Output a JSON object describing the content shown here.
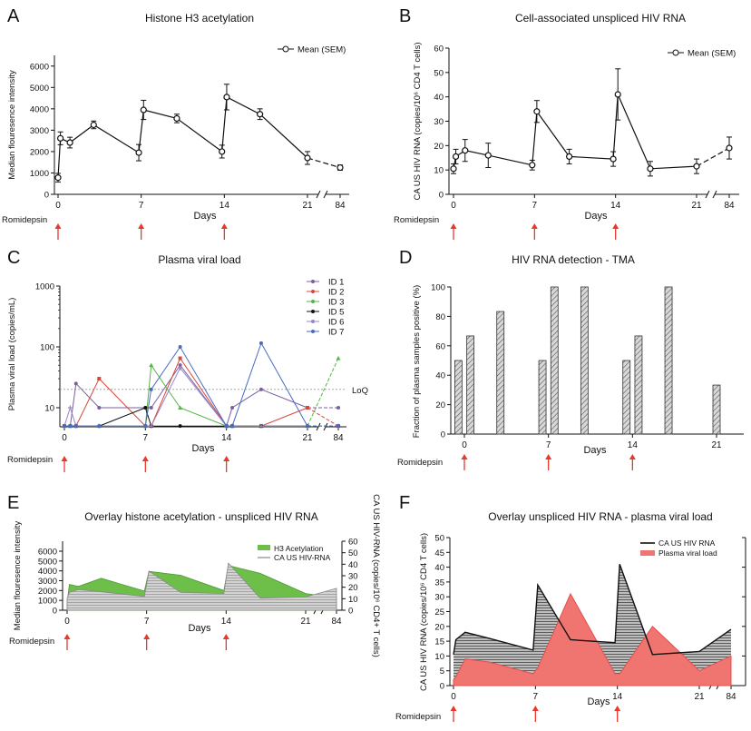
{
  "romidepsin_label": "Romidepsin",
  "arrow_color": "#e8382c",
  "chart_data": [
    {
      "panel": "A",
      "type": "line",
      "title": "Histone H3 acetylation",
      "xlabel": "Days",
      "ylabel": "Median flouresence intensity",
      "ylim": [
        0,
        6500
      ],
      "yticks": [
        0,
        1000,
        2000,
        3000,
        4000,
        5000,
        6000
      ],
      "xticks": [
        "0",
        "7",
        "14",
        "21",
        "84"
      ],
      "legend": "Mean (SEM)",
      "legend_position": "top-right",
      "romidepsin_days": [
        0,
        7,
        14
      ],
      "series": [
        {
          "name": "Mean (SEM)",
          "points": [
            {
              "x": 0,
              "y": 780,
              "err": 200
            },
            {
              "x": 0.2,
              "y": 2620,
              "err": 300
            },
            {
              "x": 1,
              "y": 2420,
              "err": 250
            },
            {
              "x": 3,
              "y": 3250,
              "err": 180
            },
            {
              "x": 6.8,
              "y": 1950,
              "err": 380
            },
            {
              "x": 7.2,
              "y": 3950,
              "err": 450
            },
            {
              "x": 10,
              "y": 3550,
              "err": 200
            },
            {
              "x": 13.8,
              "y": 2000,
              "err": 300
            },
            {
              "x": 14.2,
              "y": 4550,
              "err": 600
            },
            {
              "x": 17,
              "y": 3750,
              "err": 250
            },
            {
              "x": 21,
              "y": 1700,
              "err": 300
            },
            {
              "x": 84,
              "y": 1250,
              "err": 120
            }
          ]
        }
      ]
    },
    {
      "panel": "B",
      "type": "line",
      "title": "Cell-associated unspliced HIV RNA",
      "xlabel": "Days",
      "ylabel": "CA US HIV RNA (copies/10⁶ CD4 T cells)",
      "ylim": [
        0,
        60
      ],
      "yticks": [
        0,
        10,
        20,
        30,
        40,
        50,
        60
      ],
      "xticks": [
        "0",
        "7",
        "14",
        "21",
        "84"
      ],
      "legend": "Mean (SEM)",
      "legend_position": "top-right",
      "romidepsin_days": [
        0,
        7,
        14
      ],
      "series": [
        {
          "name": "Mean (SEM)",
          "points": [
            {
              "x": 0,
              "y": 10.5,
              "err": 2
            },
            {
              "x": 0.2,
              "y": 15.5,
              "err": 3
            },
            {
              "x": 1,
              "y": 18,
              "err": 4.5
            },
            {
              "x": 3,
              "y": 16,
              "err": 5
            },
            {
              "x": 6.8,
              "y": 12,
              "err": 2
            },
            {
              "x": 7.2,
              "y": 34,
              "err": 4.5
            },
            {
              "x": 10,
              "y": 15.5,
              "err": 3
            },
            {
              "x": 13.8,
              "y": 14.5,
              "err": 3
            },
            {
              "x": 14.2,
              "y": 41,
              "err": 10.5
            },
            {
              "x": 17,
              "y": 10.5,
              "err": 3
            },
            {
              "x": 21,
              "y": 11.5,
              "err": 3
            },
            {
              "x": 84,
              "y": 19,
              "err": 4.5
            }
          ]
        }
      ]
    },
    {
      "panel": "C",
      "type": "line",
      "title": "Plasma viral load",
      "xlabel": "Days",
      "ylabel": "Plasma viral load (copies/mL)",
      "yscale": "log",
      "ylim": [
        4,
        1000
      ],
      "yticks": [
        10,
        100,
        1000
      ],
      "xticks": [
        "0",
        "7",
        "14",
        "21",
        "84"
      ],
      "loq_label": "LoQ",
      "loq_value": 20,
      "legend_position": "top-right",
      "romidepsin_days": [
        0,
        7,
        14
      ],
      "series": [
        {
          "name": "ID 1",
          "color": "#7a5fa0",
          "marker": "circle",
          "points": [
            [
              0,
              5
            ],
            [
              0.5,
              5
            ],
            [
              1,
              25
            ],
            [
              3,
              10
            ],
            [
              7,
              10
            ],
            [
              7.5,
              10
            ],
            [
              10,
              50
            ],
            [
              14,
              5
            ],
            [
              14.5,
              10
            ],
            [
              17,
              20
            ],
            [
              21,
              10
            ],
            [
              84,
              10
            ]
          ]
        },
        {
          "name": "ID 2",
          "color": "#d9473a",
          "marker": "square",
          "points": [
            [
              0,
              5
            ],
            [
              0.5,
              5
            ],
            [
              1,
              5
            ],
            [
              3,
              30
            ],
            [
              7,
              5
            ],
            [
              7.5,
              5
            ],
            [
              10,
              65
            ],
            [
              14,
              5
            ],
            [
              14.5,
              5
            ],
            [
              17,
              5
            ],
            [
              21,
              10
            ],
            [
              84,
              5
            ]
          ]
        },
        {
          "name": "ID 3",
          "color": "#56b34a",
          "marker": "triangle",
          "points": [
            [
              0,
              5
            ],
            [
              0.5,
              5
            ],
            [
              1,
              5
            ],
            [
              3,
              5
            ],
            [
              7,
              5
            ],
            [
              7.5,
              50
            ],
            [
              10,
              10
            ],
            [
              14,
              5
            ],
            [
              14.5,
              5
            ],
            [
              17,
              5
            ],
            [
              21,
              5
            ],
            [
              84,
              65
            ]
          ]
        },
        {
          "name": "ID 5",
          "color": "#111111",
          "marker": "circle",
          "points": [
            [
              0,
              5
            ],
            [
              0.5,
              5
            ],
            [
              1,
              5
            ],
            [
              3,
              5
            ],
            [
              7,
              10
            ],
            [
              7.5,
              5
            ],
            [
              10,
              5
            ],
            [
              14,
              5
            ],
            [
              14.5,
              5
            ],
            [
              17,
              5
            ],
            [
              21,
              5
            ],
            [
              84,
              5
            ]
          ]
        },
        {
          "name": "ID 6",
          "color": "#9a86c9",
          "marker": "star",
          "points": [
            [
              0,
              5
            ],
            [
              0.5,
              10
            ],
            [
              1,
              5
            ],
            [
              3,
              5
            ],
            [
              7,
              5
            ],
            [
              7.5,
              5
            ],
            [
              10,
              45
            ],
            [
              14,
              5
            ],
            [
              14.5,
              5
            ],
            [
              17,
              5
            ],
            [
              21,
              5
            ],
            [
              84,
              5
            ]
          ]
        },
        {
          "name": "ID 7",
          "color": "#4a6ac2",
          "marker": "circle",
          "points": [
            [
              0,
              5
            ],
            [
              0.5,
              5
            ],
            [
              1,
              5
            ],
            [
              3,
              5
            ],
            [
              7,
              5
            ],
            [
              7.5,
              20
            ],
            [
              10,
              100
            ],
            [
              14,
              5
            ],
            [
              14.5,
              5
            ],
            [
              17,
              115
            ],
            [
              21,
              5
            ],
            [
              84,
              5
            ]
          ]
        }
      ]
    },
    {
      "panel": "D",
      "type": "bar",
      "title": "HIV RNA detection - TMA",
      "xlabel": "Days",
      "ylabel": "Fraction of plasma samples positive (%)",
      "ylim": [
        0,
        100
      ],
      "yticks": [
        0,
        20,
        40,
        60,
        80,
        100
      ],
      "xticks": [
        "0",
        "7",
        "14",
        "21"
      ],
      "romidepsin_days": [
        0,
        7,
        14
      ],
      "bars": [
        {
          "x": -0.5,
          "value": 50
        },
        {
          "x": 0.5,
          "value": 66.7
        },
        {
          "x": 3,
          "value": 83.3
        },
        {
          "x": 6.5,
          "value": 50
        },
        {
          "x": 7.5,
          "value": 100
        },
        {
          "x": 10,
          "value": 100
        },
        {
          "x": 13.5,
          "value": 50
        },
        {
          "x": 14.5,
          "value": 66.7
        },
        {
          "x": 17,
          "value": 100
        },
        {
          "x": 21,
          "value": 33.3
        }
      ]
    },
    {
      "panel": "E",
      "type": "area",
      "title": "Overlay histone acetylation - unspliced HIV RNA",
      "xlabel": "Days",
      "ylabel": "Median flouresence intensity",
      "ylabel_right": "CA US HIV-RNA (copies/10⁶ CD4+ T cells)",
      "ylim": [
        0,
        6500
      ],
      "ylim_right": [
        0,
        60
      ],
      "yticks": [
        0,
        1000,
        2000,
        3000,
        4000,
        5000,
        6000
      ],
      "yticks_right": [
        0,
        10,
        20,
        30,
        40,
        50,
        60
      ],
      "xticks": [
        "0",
        "7",
        "14",
        "21",
        "84"
      ],
      "legend_position": "top-right",
      "romidepsin_days": [
        0,
        7,
        14
      ],
      "series": [
        {
          "name": "H3 Acetylation",
          "color": "#6dbf4a",
          "points": [
            [
              0,
              780
            ],
            [
              0.2,
              2620
            ],
            [
              1,
              2420
            ],
            [
              3,
              3250
            ],
            [
              6.8,
              1950
            ],
            [
              7.2,
              3950
            ],
            [
              10,
              3550
            ],
            [
              13.8,
              2000
            ],
            [
              14.2,
              4550
            ],
            [
              17,
              3750
            ],
            [
              21,
              1700
            ],
            [
              84,
              1250
            ]
          ]
        },
        {
          "name": "CA US HIV-RNA",
          "color": "#bdbdbd",
          "points": [
            [
              0,
              10.5
            ],
            [
              0.2,
              15.5
            ],
            [
              1,
              18
            ],
            [
              3,
              16
            ],
            [
              6.8,
              12
            ],
            [
              7.2,
              34
            ],
            [
              10,
              15.5
            ],
            [
              13.8,
              14.5
            ],
            [
              14.2,
              41
            ],
            [
              17,
              10.5
            ],
            [
              21,
              11.5
            ],
            [
              84,
              19
            ]
          ]
        }
      ]
    },
    {
      "panel": "F",
      "type": "area",
      "title": "Overlay unspliced HIV RNA - plasma viral load",
      "xlabel": "Days",
      "ylabel": "CA US HIV RNA (copies/10⁶ CD4 T cells)",
      "ylim": [
        0,
        50
      ],
      "yticks": [
        0,
        5,
        10,
        15,
        20,
        25,
        30,
        35,
        40,
        45,
        50
      ],
      "xticks": [
        "0",
        "7",
        "14",
        "21",
        "84"
      ],
      "legend_position": "top-right",
      "romidepsin_days": [
        0,
        7,
        14
      ],
      "series": [
        {
          "name": "CA US HIV RNA",
          "color": "#111111",
          "points": [
            [
              0,
              10.5
            ],
            [
              0.2,
              15.5
            ],
            [
              1,
              18
            ],
            [
              3,
              16
            ],
            [
              6.8,
              12
            ],
            [
              7.2,
              34
            ],
            [
              10,
              15.5
            ],
            [
              13.8,
              14.5
            ],
            [
              14.2,
              41
            ],
            [
              17,
              10.5
            ],
            [
              21,
              11.5
            ],
            [
              84,
              19
            ]
          ]
        },
        {
          "name": "Plasma viral load",
          "color": "#f07470",
          "points": [
            [
              0,
              2
            ],
            [
              0.2,
              3
            ],
            [
              1,
              9
            ],
            [
              3,
              8
            ],
            [
              6.8,
              4
            ],
            [
              7.2,
              6
            ],
            [
              10,
              31
            ],
            [
              13.8,
              4
            ],
            [
              14.2,
              4
            ],
            [
              17,
              20
            ],
            [
              21,
              5
            ],
            [
              84,
              10
            ]
          ]
        }
      ]
    }
  ]
}
